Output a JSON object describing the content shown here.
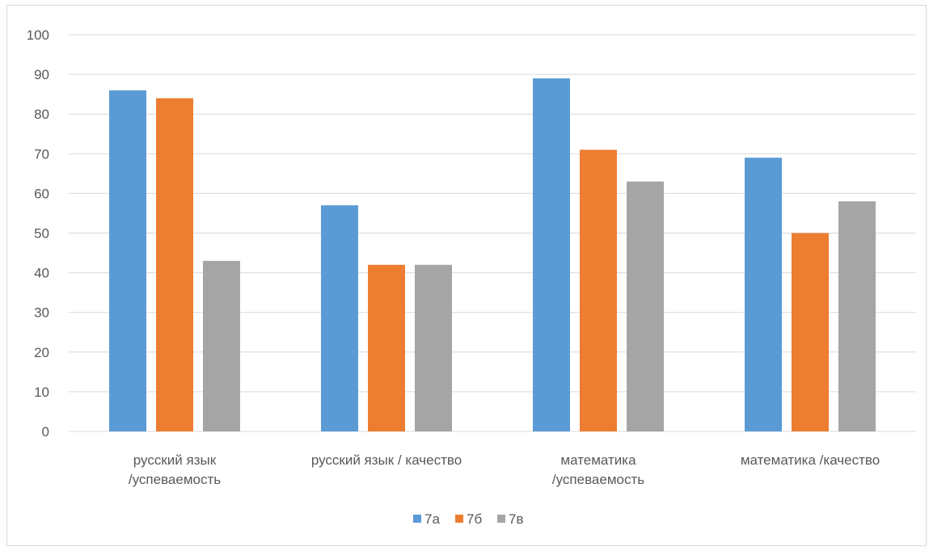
{
  "chart_data": {
    "type": "bar",
    "categories": [
      [
        "русский язык",
        "/успеваемость"
      ],
      [
        "русский язык / качество"
      ],
      [
        "математика",
        "/успеваемость"
      ],
      [
        "математика /качество"
      ]
    ],
    "series": [
      {
        "name": "7а",
        "color": "#5b9bd5",
        "values": [
          86,
          57,
          89,
          69
        ]
      },
      {
        "name": "7б",
        "color": "#ed7d31",
        "values": [
          84,
          42,
          71,
          50
        ]
      },
      {
        "name": "7в",
        "color": "#a5a5a5",
        "values": [
          43,
          42,
          63,
          58
        ]
      }
    ],
    "ylim": [
      0,
      100
    ],
    "yticks": [
      0,
      10,
      20,
      30,
      40,
      50,
      60,
      70,
      80,
      90,
      100
    ],
    "grid": true,
    "legend_position": "bottom"
  }
}
